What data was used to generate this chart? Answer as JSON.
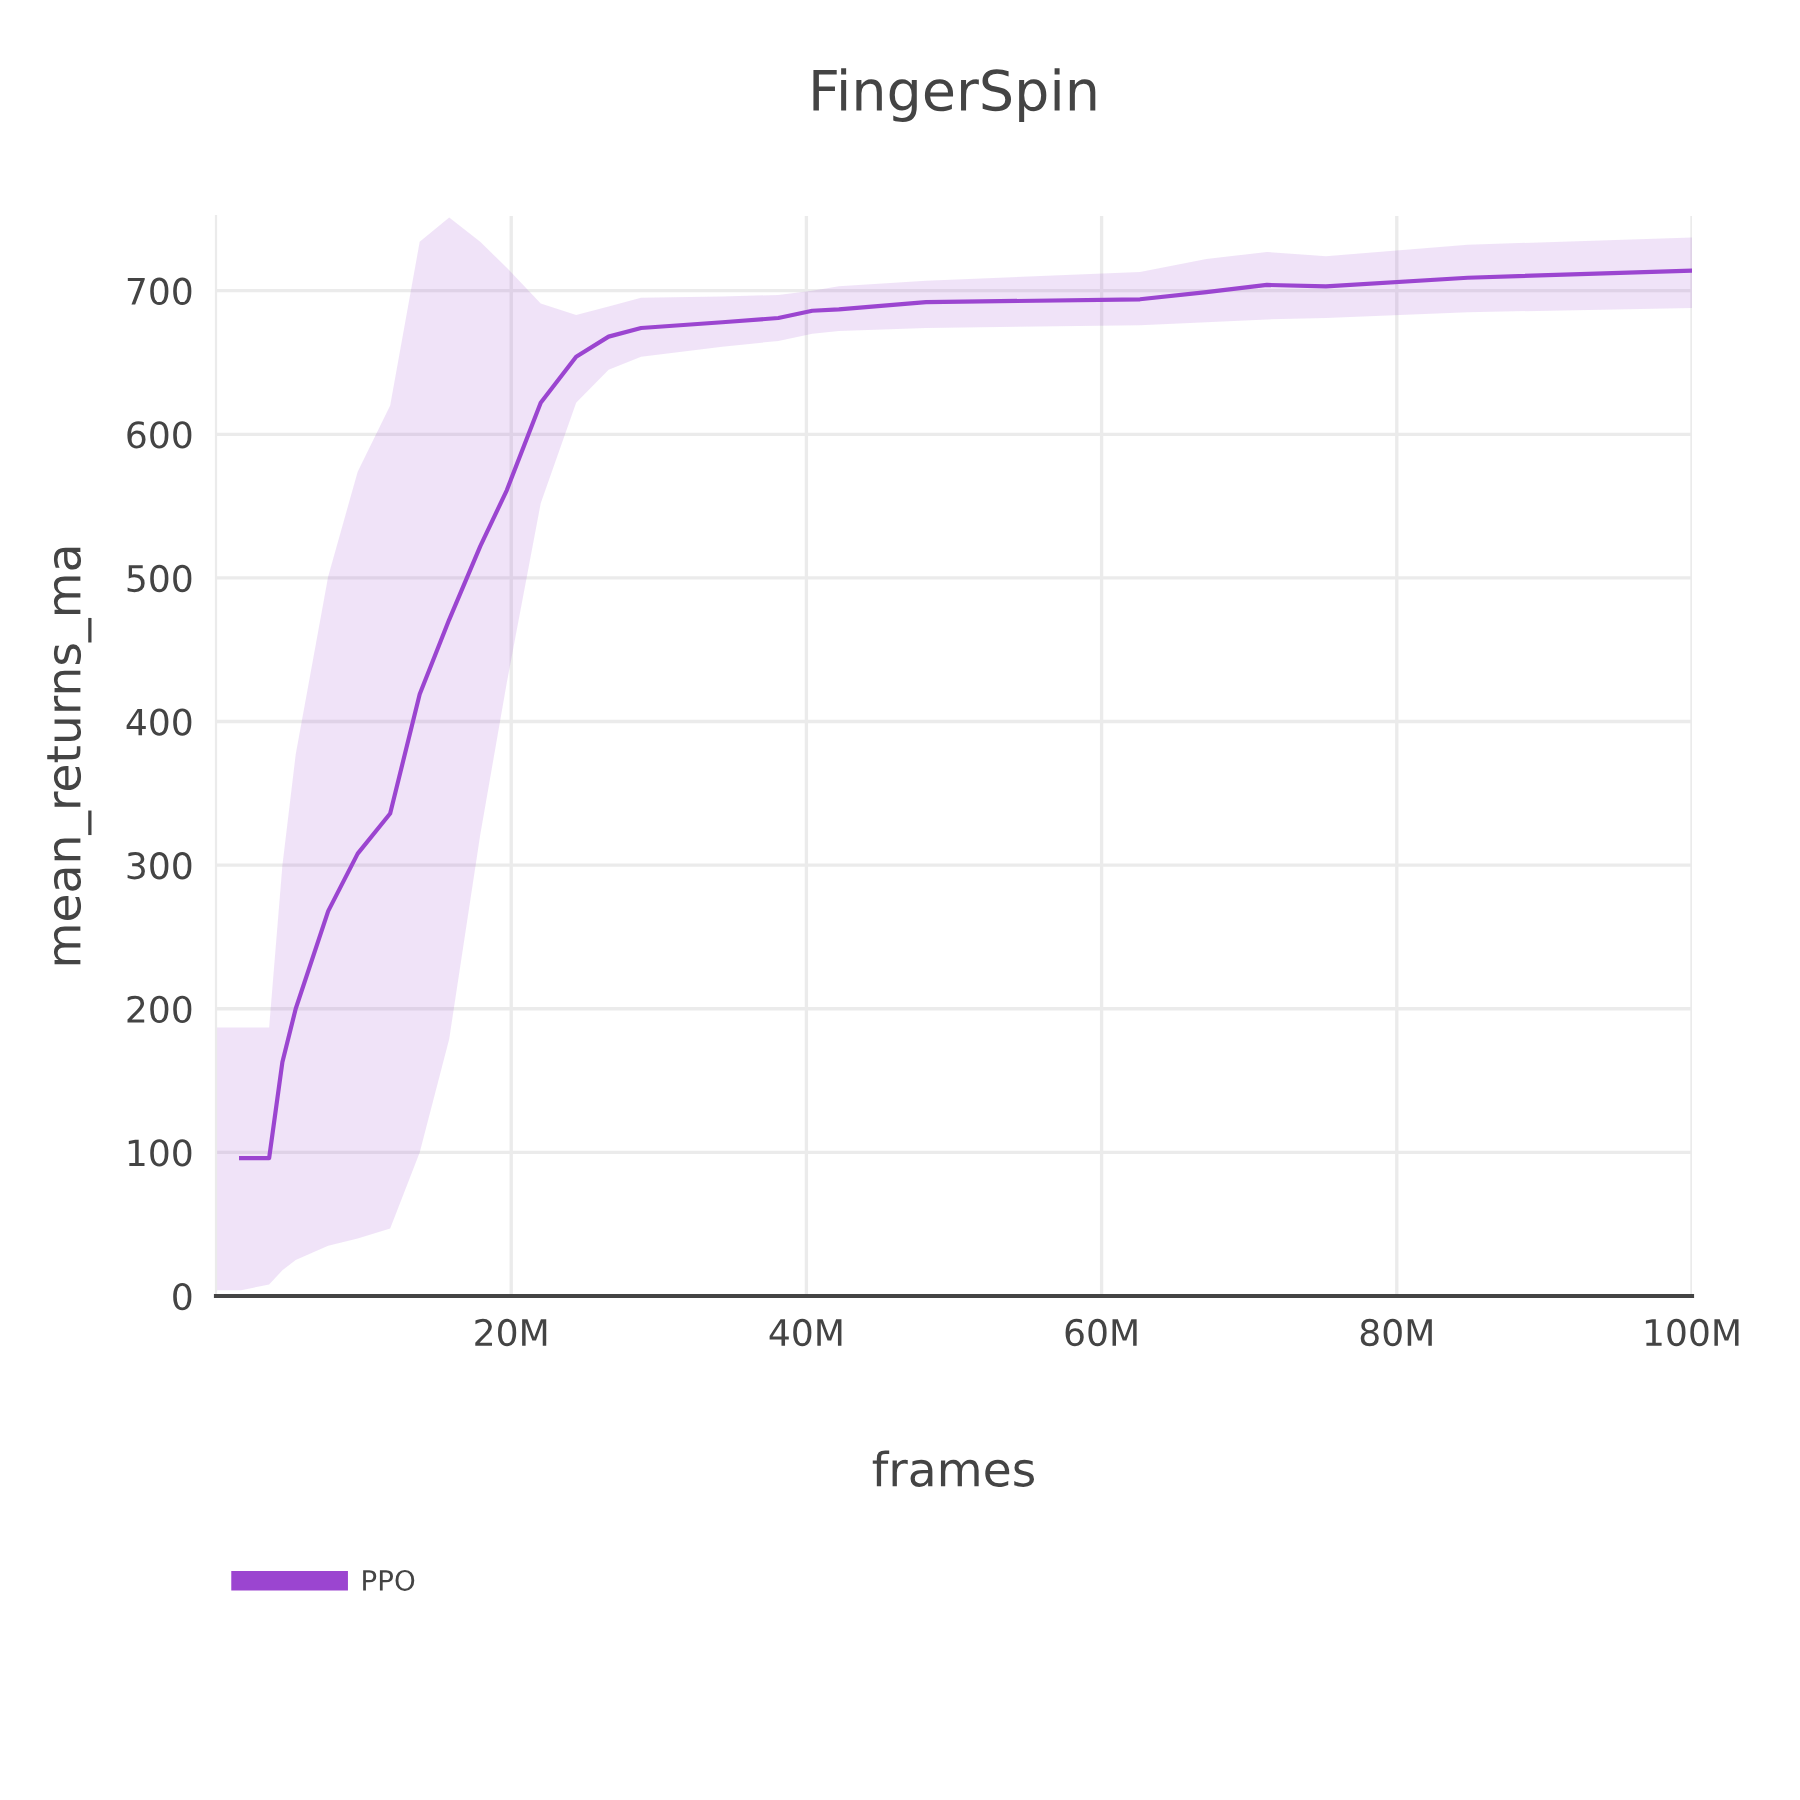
{
  "chart_data": {
    "type": "line",
    "title": "FingerSpin",
    "xlabel": "frames",
    "ylabel": "mean_returns_ma",
    "x": [
      0,
      1700000,
      3600000,
      4500000,
      5400000,
      7600000,
      9600000,
      11800000,
      13800000,
      15800000,
      17900000,
      19700000,
      22000000,
      24400000,
      26600000,
      28800000,
      34300000,
      38100000,
      40400000,
      42200000,
      48100000,
      62600000,
      67100000,
      71200000,
      75200000,
      84800000,
      100000000
    ],
    "series": [
      {
        "name": "PPO",
        "color": "#9b45d0",
        "values": [
          null,
          96,
          96,
          163,
          200,
          268,
          308,
          336,
          419,
          471,
          522,
          561,
          622,
          654,
          668,
          674,
          678,
          681,
          686,
          687,
          692,
          694,
          699,
          704,
          703,
          709,
          714
        ],
        "lower": [
          4,
          4,
          8,
          18,
          25,
          35,
          40,
          47,
          100,
          179,
          321,
          427,
          552,
          622,
          645,
          654,
          661,
          665,
          670,
          672,
          674,
          676,
          678,
          680,
          681,
          685,
          688
        ],
        "upper": [
          187,
          187,
          187,
          300,
          377,
          501,
          574,
          620,
          734,
          751,
          734,
          716,
          691,
          683,
          689,
          695,
          696,
          697,
          700,
          703,
          707,
          713,
          722,
          727,
          724,
          732,
          737
        ]
      }
    ],
    "xlim": [
      0,
      100000000
    ],
    "ylim": [
      0,
      752
    ],
    "xticks": [
      {
        "value": 20000000,
        "label": "20M"
      },
      {
        "value": 40000000,
        "label": "40M"
      },
      {
        "value": 60000000,
        "label": "60M"
      },
      {
        "value": 80000000,
        "label": "80M"
      },
      {
        "value": 100000000,
        "label": "100M"
      }
    ],
    "yticks": [
      0,
      100,
      200,
      300,
      400,
      500,
      600,
      700
    ],
    "grid": true,
    "legend": "bottom left",
    "line_style": "solid",
    "marker": "none"
  }
}
